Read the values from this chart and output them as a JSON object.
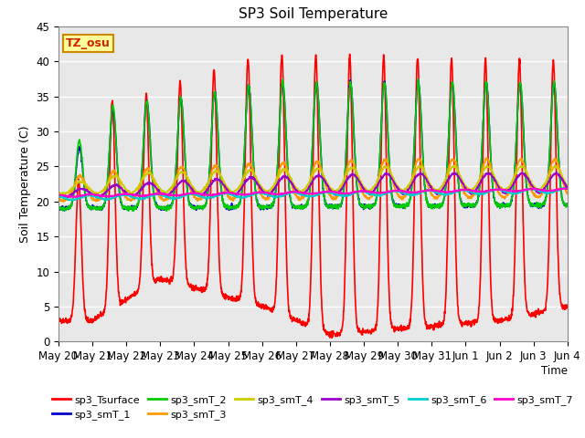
{
  "title": "SP3 Soil Temperature",
  "xlabel": "Time",
  "ylabel": "Soil Temperature (C)",
  "ylim": [
    0,
    45
  ],
  "annotation_text": "TZ_osu",
  "annotation_bg": "#FFFF99",
  "annotation_border": "#CC8800",
  "background_color": "#ffffff",
  "plot_bg": "#e8e8e8",
  "grid_color": "#ffffff",
  "legend_labels": [
    "sp3_Tsurface",
    "sp3_smT_1",
    "sp3_smT_2",
    "sp3_smT_3",
    "sp3_smT_4",
    "sp3_smT_5",
    "sp3_smT_6",
    "sp3_smT_7"
  ],
  "legend_colors": [
    "#ff0000",
    "#0000cc",
    "#00cc00",
    "#ff9900",
    "#cccc00",
    "#9900cc",
    "#00cccc",
    "#ff00cc"
  ],
  "x_tick_labels": [
    "May 20",
    "May 21",
    "May 22",
    "May 23",
    "May 24",
    "May 25",
    "May 26",
    "May 27",
    "May 28",
    "May 29",
    "May 30",
    "May 31",
    "Jun 1",
    "Jun 2",
    "Jun 3",
    "Jun 4"
  ],
  "n_points": 2160,
  "n_days": 15
}
